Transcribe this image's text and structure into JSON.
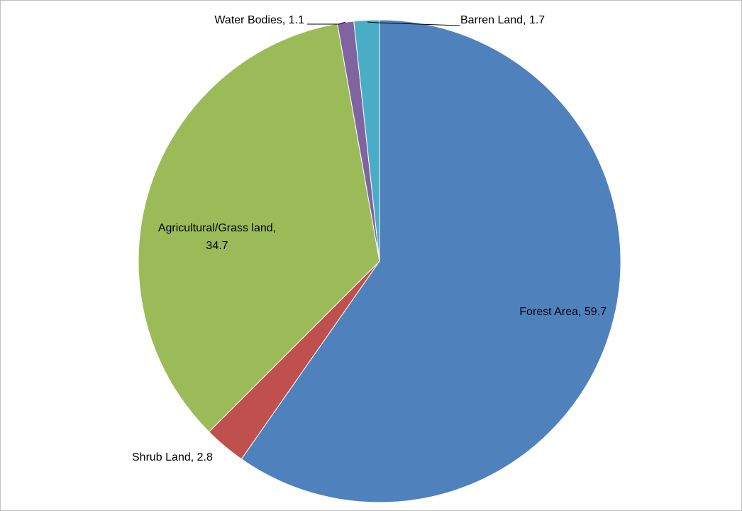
{
  "chart_data": {
    "type": "pie",
    "title": "",
    "start_angle_deg": 0,
    "direction": "clockwise",
    "legend": "none",
    "data_labels": "category-and-value",
    "slices": [
      {
        "label": "Forest Area",
        "value": 59.7,
        "color": "#4F81BD",
        "text": "Forest Area, 59.7"
      },
      {
        "label": "Shrub Land",
        "value": 2.8,
        "color": "#C0504D",
        "text": "Shrub Land, 2.8"
      },
      {
        "label": "Agricultural/Grass land",
        "value": 34.7,
        "color": "#9BBB59",
        "text_line1": "Agricultural/Grass land,",
        "text_line2": "34.7"
      },
      {
        "label": "Water Bodies",
        "value": 1.1,
        "color": "#8064A2",
        "text": "Water Bodies, 1.1"
      },
      {
        "label": "Barren Land",
        "value": 1.7,
        "color": "#4BACC6",
        "text": "Barren Land, 1.7"
      }
    ]
  }
}
